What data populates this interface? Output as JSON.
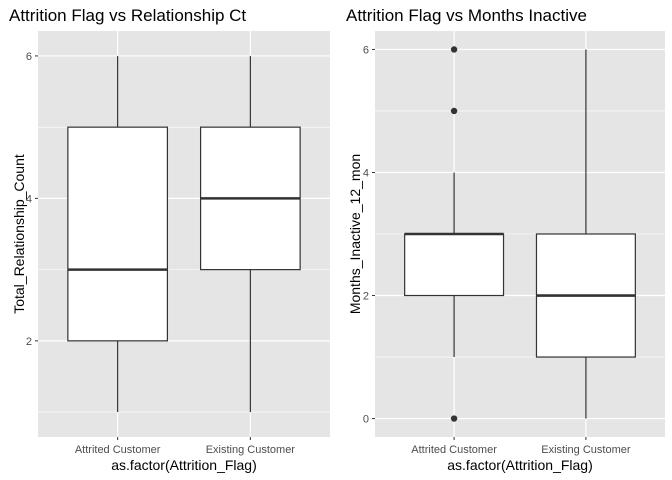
{
  "theme": {
    "panel_bg": "#e5e5e5",
    "grid_major": "#ffffff",
    "box_fill": "#ffffff",
    "box_line": "#333333",
    "tick_color": "#333333"
  },
  "chart_data": [
    {
      "type": "boxplot",
      "title": "Attrition Flag vs Relationship Ct",
      "xlabel": "as.factor(Attrition_Flag)",
      "ylabel": "Total_Relationship_Count",
      "ylim": [
        0.65,
        6.35
      ],
      "yticks": [
        2,
        4,
        6
      ],
      "yticks_labels": [
        "2",
        "4",
        "6"
      ],
      "grid": true,
      "categories": [
        "Attrited Customer",
        "Existing Customer"
      ],
      "boxes": [
        {
          "category": "Attrited Customer",
          "min": 1,
          "q1": 2,
          "median": 3,
          "q3": 5,
          "max": 6,
          "outliers": []
        },
        {
          "category": "Existing Customer",
          "min": 1,
          "q1": 3,
          "median": 4,
          "q3": 5,
          "max": 6,
          "outliers": []
        }
      ]
    },
    {
      "type": "boxplot",
      "title": "Attrition Flag vs Months Inactive",
      "xlabel": "as.factor(Attrition_Flag)",
      "ylabel": "Months_Inactive_12_mon",
      "ylim": [
        -0.3,
        6.3
      ],
      "yticks": [
        0,
        2,
        4,
        6
      ],
      "yticks_labels": [
        "0",
        "2",
        "4",
        "6"
      ],
      "grid": true,
      "categories": [
        "Attrited Customer",
        "Existing Customer"
      ],
      "boxes": [
        {
          "category": "Attrited Customer",
          "min": 1,
          "q1": 2,
          "median": 3,
          "q3": 3,
          "max": 4,
          "outliers": [
            0,
            5,
            6
          ]
        },
        {
          "category": "Existing Customer",
          "min": 0,
          "q1": 1,
          "median": 2,
          "q3": 3,
          "max": 6,
          "outliers": []
        }
      ]
    }
  ]
}
